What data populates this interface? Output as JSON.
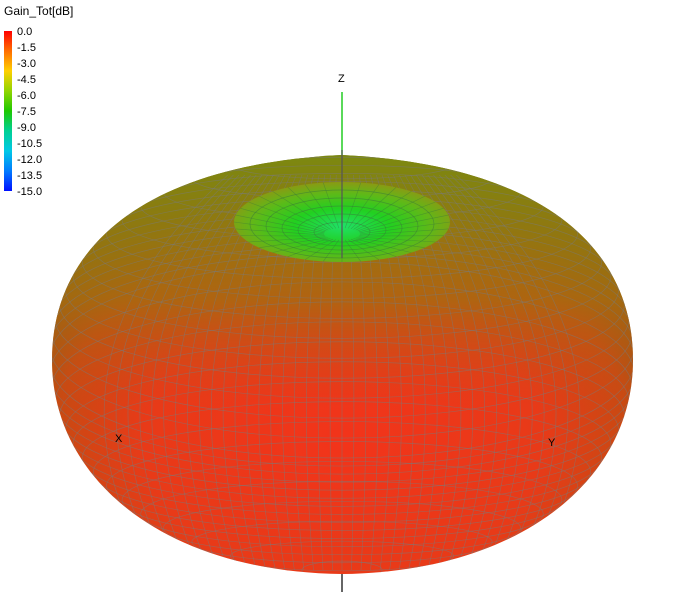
{
  "legend": {
    "title": "Gain_Tot[dB]",
    "ticks": [
      "0.0",
      "-1.5",
      "-3.0",
      "-4.5",
      "-6.0",
      "-7.5",
      "-9.0",
      "-10.5",
      "-12.0",
      "-13.5",
      "-15.0"
    ],
    "colors": [
      "#ff0000",
      "#ff8c00",
      "#ffd000",
      "#8cd400",
      "#1ec800",
      "#00d0a0",
      "#00c8e6",
      "#0078ff",
      "#0010ff"
    ]
  },
  "axes": {
    "x": "X",
    "y": "Y",
    "z": "Z"
  },
  "surface": {
    "colors": {
      "equator": "#f03218",
      "top": "#22d820",
      "mid": "#a06a10"
    },
    "gain_min_db": -15.0,
    "gain_max_db": 0.0
  }
}
